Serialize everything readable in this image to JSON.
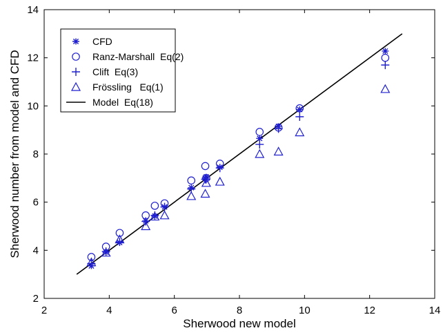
{
  "chart_data": {
    "type": "scatter",
    "xlabel": "Sherwood new model",
    "ylabel": "Sherwood number from model and CFD",
    "xlim": [
      2,
      14
    ],
    "ylim": [
      2,
      14
    ],
    "xticks": [
      "2",
      "4",
      "6",
      "8",
      "10",
      "12",
      "14"
    ],
    "yticks": [
      "2",
      "4",
      "6",
      "8",
      "10",
      "12",
      "14"
    ],
    "grid": false,
    "legend_position": "top-left",
    "marker_color": "#1f1fcf",
    "line_color": "#000000",
    "series": [
      {
        "name": "CFD",
        "marker": "asterisk",
        "points": [
          [
            3.45,
            3.35
          ],
          [
            3.9,
            3.92
          ],
          [
            4.32,
            4.32
          ],
          [
            5.12,
            5.22
          ],
          [
            5.4,
            5.42
          ],
          [
            5.7,
            5.8
          ],
          [
            6.52,
            6.6
          ],
          [
            6.95,
            7.0
          ],
          [
            6.98,
            7.05
          ],
          [
            7.4,
            7.45
          ],
          [
            8.62,
            8.65
          ],
          [
            9.2,
            9.15
          ],
          [
            9.85,
            9.85
          ],
          [
            12.48,
            12.28
          ]
        ]
      },
      {
        "name": "Ranz-Marshall  Eq(2)",
        "marker": "circle",
        "points": [
          [
            3.45,
            3.72
          ],
          [
            3.9,
            4.15
          ],
          [
            4.32,
            4.72
          ],
          [
            5.12,
            5.45
          ],
          [
            5.4,
            5.85
          ],
          [
            5.7,
            5.95
          ],
          [
            6.52,
            6.9
          ],
          [
            6.95,
            7.5
          ],
          [
            6.98,
            7.0
          ],
          [
            7.4,
            7.6
          ],
          [
            8.62,
            8.92
          ],
          [
            9.2,
            9.1
          ],
          [
            9.85,
            9.9
          ],
          [
            12.48,
            12.0
          ]
        ]
      },
      {
        "name": "Clift  Eq(3)",
        "marker": "plus",
        "points": [
          [
            3.45,
            3.45
          ],
          [
            3.9,
            3.95
          ],
          [
            4.32,
            4.35
          ],
          [
            5.12,
            5.2
          ],
          [
            5.4,
            5.45
          ],
          [
            5.7,
            5.8
          ],
          [
            6.52,
            6.55
          ],
          [
            6.95,
            6.95
          ],
          [
            6.98,
            6.95
          ],
          [
            7.4,
            7.42
          ],
          [
            8.62,
            8.4
          ],
          [
            9.2,
            9.05
          ],
          [
            9.85,
            9.55
          ],
          [
            12.48,
            11.7
          ]
        ]
      },
      {
        "name": "Frössling   Eq(1)",
        "marker": "triangle",
        "points": [
          [
            3.45,
            3.5
          ],
          [
            3.9,
            3.9
          ],
          [
            4.32,
            4.45
          ],
          [
            5.12,
            5.0
          ],
          [
            5.4,
            5.4
          ],
          [
            5.7,
            5.45
          ],
          [
            6.52,
            6.25
          ],
          [
            6.95,
            6.35
          ],
          [
            6.98,
            6.8
          ],
          [
            7.4,
            6.85
          ],
          [
            8.62,
            8.0
          ],
          [
            9.2,
            8.1
          ],
          [
            9.85,
            8.9
          ],
          [
            12.48,
            10.7
          ]
        ]
      },
      {
        "name": "Model  Eq(18)",
        "marker": "line",
        "points": [
          [
            3,
            3
          ],
          [
            13,
            13
          ]
        ]
      }
    ]
  }
}
